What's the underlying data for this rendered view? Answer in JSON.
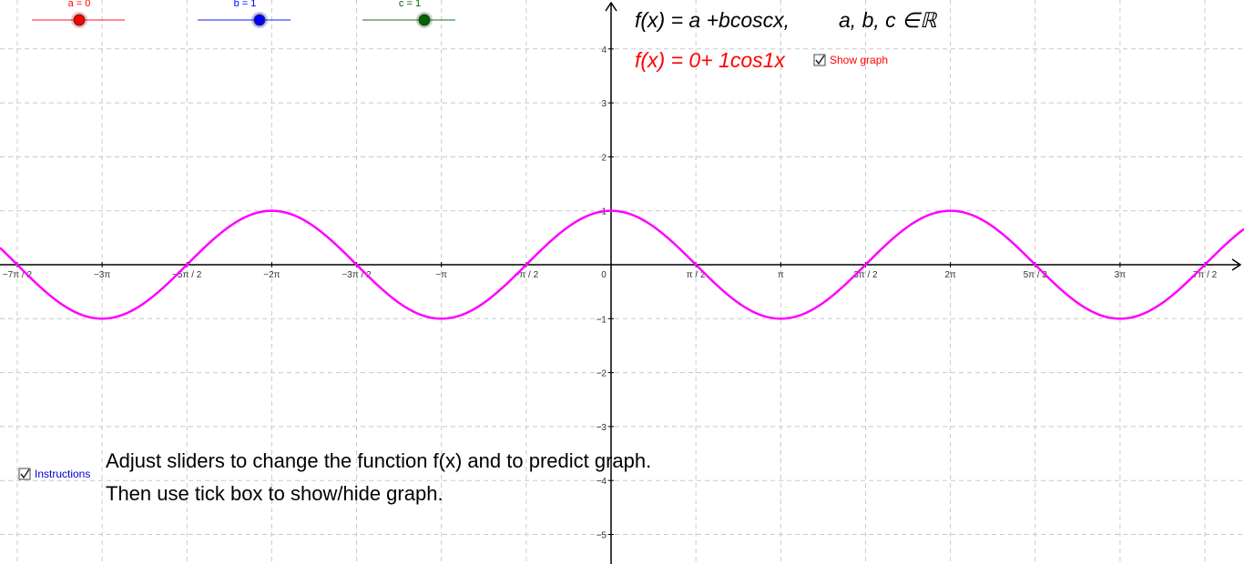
{
  "sliders": [
    {
      "label": "a = 0",
      "value": 0,
      "color": "#ff0000"
    },
    {
      "label": "b = 1",
      "value": 1,
      "color": "#0000ff"
    },
    {
      "label": "c = 1",
      "value": 1,
      "color": "#006400"
    }
  ],
  "formula": "f(x) = a +bcoscx,",
  "domain_text": "a, b, c ∈ℝ",
  "current_formula": "f(x) = 0+ 1cos1x",
  "show_graph": {
    "label": "Show graph",
    "checked": true
  },
  "instructions_box": {
    "label": "Instructions",
    "checked": true
  },
  "instructions": [
    "Adjust sliders to change the function f(x) and to predict graph.",
    "Then use tick box to show/hide graph."
  ],
  "graph": {
    "curve_color": "#ff00ff",
    "xticks": [
      {
        "value": -10.9956,
        "label": "−7π / 2"
      },
      {
        "value": -9.4248,
        "label": "−3π"
      },
      {
        "value": -7.854,
        "label": "−5π / 2"
      },
      {
        "value": -6.2832,
        "label": "−2π"
      },
      {
        "value": -4.7124,
        "label": "−3π / 2"
      },
      {
        "value": -3.1416,
        "label": "−π"
      },
      {
        "value": -1.5708,
        "label": "−π / 2"
      },
      {
        "value": 0,
        "label": "0"
      },
      {
        "value": 1.5708,
        "label": "π / 2"
      },
      {
        "value": 3.1416,
        "label": "π"
      },
      {
        "value": 4.7124,
        "label": "3π / 2"
      },
      {
        "value": 6.2832,
        "label": "2π"
      },
      {
        "value": 7.854,
        "label": "5π / 2"
      },
      {
        "value": 9.4248,
        "label": "3π"
      },
      {
        "value": 10.9956,
        "label": "7π / 2"
      }
    ],
    "yticks": [
      {
        "value": -5,
        "label": "−5"
      },
      {
        "value": -4,
        "label": "−4"
      },
      {
        "value": -3,
        "label": "−3"
      },
      {
        "value": -2,
        "label": "−2"
      },
      {
        "value": -1,
        "label": "−1"
      },
      1,
      2,
      3,
      4
    ]
  }
}
